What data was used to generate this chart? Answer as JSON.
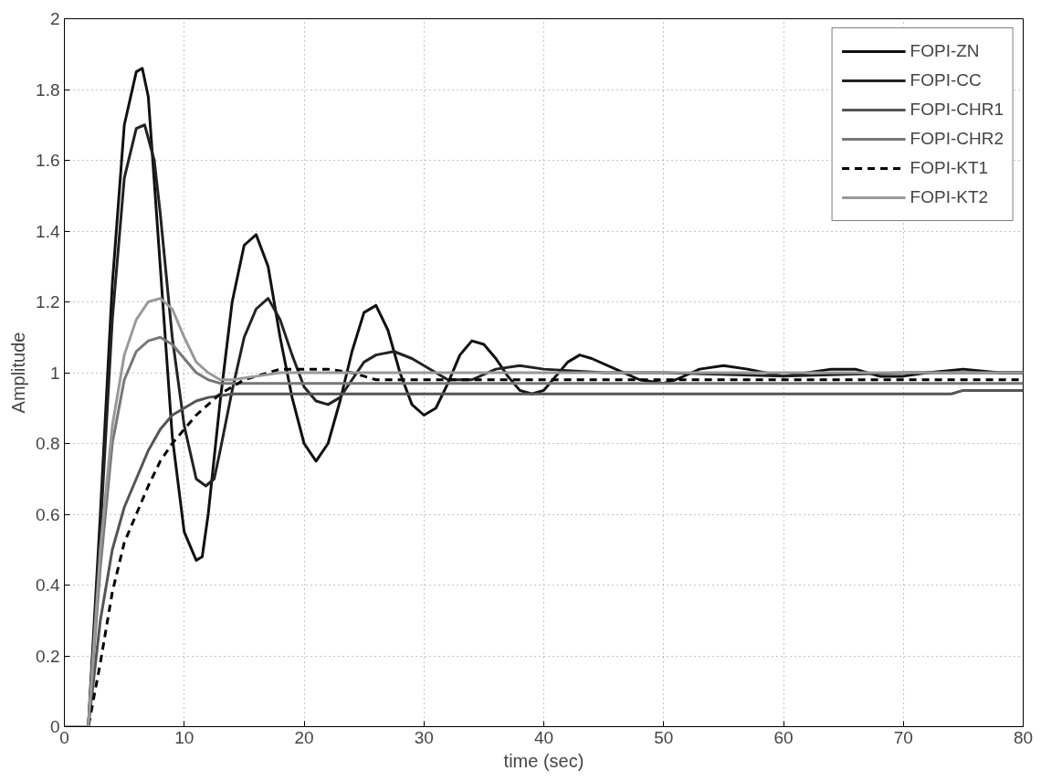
{
  "chart_data": {
    "type": "line",
    "xlabel": "time (sec)",
    "ylabel": "Amplitude",
    "xlim": [
      0,
      80
    ],
    "xticks": [
      0,
      10,
      20,
      30,
      40,
      50,
      60,
      70,
      80
    ],
    "ylim": [
      0,
      2
    ],
    "yticks": [
      0,
      0.2,
      0.4,
      0.6,
      0.8,
      1,
      1.2,
      1.4,
      1.6,
      1.8,
      2
    ],
    "grid": true,
    "legend": "top right",
    "series": [
      {
        "name": "FOPI-ZN",
        "color": "#111111",
        "x": [
          0,
          2,
          3,
          4,
          5,
          6,
          6.5,
          7,
          8,
          9,
          10,
          11,
          11.5,
          12,
          13,
          14,
          15,
          16,
          17,
          18,
          19,
          20,
          21,
          22,
          23,
          24,
          25,
          26,
          27,
          28,
          29,
          30,
          31,
          32,
          33,
          34,
          35,
          36,
          37,
          38,
          39,
          40,
          41,
          42,
          43,
          44,
          46,
          48,
          50,
          51,
          53,
          55,
          57,
          60,
          62,
          64,
          66,
          68,
          70,
          72,
          75,
          78,
          80
        ],
        "values": [
          0,
          0,
          0.6,
          1.25,
          1.7,
          1.85,
          1.86,
          1.78,
          1.3,
          0.82,
          0.55,
          0.47,
          0.48,
          0.6,
          0.92,
          1.2,
          1.36,
          1.39,
          1.3,
          1.1,
          0.93,
          0.8,
          0.75,
          0.8,
          0.92,
          1.06,
          1.17,
          1.19,
          1.12,
          1.0,
          0.91,
          0.88,
          0.9,
          0.97,
          1.05,
          1.09,
          1.08,
          1.04,
          0.99,
          0.95,
          0.94,
          0.95,
          0.99,
          1.03,
          1.05,
          1.04,
          1.01,
          0.98,
          0.97,
          0.98,
          1.01,
          1.02,
          1.01,
          0.99,
          1.0,
          1.01,
          1.01,
          0.99,
          0.99,
          1.0,
          1.01,
          1.0,
          1.0
        ]
      },
      {
        "name": "FOPI-CC",
        "color": "#222222",
        "x": [
          0,
          2,
          3,
          4,
          5,
          6,
          6.7,
          7.5,
          8,
          9,
          10,
          11,
          11.8,
          12.5,
          13,
          14,
          15,
          16,
          17,
          18,
          19,
          20,
          21,
          22,
          23,
          24,
          25,
          26,
          27.5,
          29,
          30,
          32,
          34,
          36,
          38,
          40,
          45,
          50,
          60,
          70,
          80
        ],
        "values": [
          0,
          0,
          0.55,
          1.15,
          1.55,
          1.69,
          1.7,
          1.6,
          1.45,
          1.1,
          0.85,
          0.7,
          0.68,
          0.7,
          0.78,
          0.95,
          1.1,
          1.18,
          1.21,
          1.15,
          1.05,
          0.96,
          0.92,
          0.91,
          0.93,
          0.98,
          1.03,
          1.05,
          1.06,
          1.04,
          1.02,
          0.98,
          0.98,
          1.01,
          1.02,
          1.01,
          1.0,
          1.0,
          0.99,
          1.0,
          1.0
        ]
      },
      {
        "name": "FOPI-CHR1",
        "color": "#555555",
        "x": [
          0,
          2,
          3,
          4,
          5,
          6,
          7,
          8,
          9,
          10,
          11,
          12,
          13,
          14,
          15,
          20,
          40,
          60,
          74,
          75,
          80
        ],
        "values": [
          0,
          0,
          0.3,
          0.5,
          0.62,
          0.7,
          0.78,
          0.84,
          0.88,
          0.9,
          0.92,
          0.93,
          0.935,
          0.94,
          0.94,
          0.94,
          0.94,
          0.94,
          0.94,
          0.95,
          0.95
        ]
      },
      {
        "name": "FOPI-CHR2",
        "color": "#777777",
        "x": [
          0,
          2,
          3,
          4,
          5,
          6,
          7,
          8,
          9,
          10,
          11,
          12,
          13,
          15,
          20,
          40,
          80
        ],
        "values": [
          0,
          0,
          0.45,
          0.8,
          0.98,
          1.06,
          1.09,
          1.1,
          1.08,
          1.04,
          1.0,
          0.98,
          0.97,
          0.97,
          0.97,
          0.97,
          0.97
        ]
      },
      {
        "name": "FOPI-KT1",
        "color": "#000000",
        "line_style": "dashed",
        "x": [
          0,
          2,
          3,
          4,
          5,
          6,
          7,
          8,
          9,
          10,
          11,
          12,
          13,
          14,
          15,
          16,
          17,
          18,
          20,
          22,
          24,
          25,
          26,
          30,
          40,
          60,
          80
        ],
        "values": [
          0,
          0,
          0.18,
          0.38,
          0.52,
          0.6,
          0.68,
          0.75,
          0.8,
          0.84,
          0.88,
          0.91,
          0.94,
          0.96,
          0.98,
          0.99,
          1.0,
          1.01,
          1.01,
          1.01,
          1.0,
          0.99,
          0.98,
          0.98,
          0.98,
          0.98,
          0.98
        ]
      },
      {
        "name": "FOPI-KT2",
        "color": "#999999",
        "x": [
          0,
          2,
          3,
          4,
          5,
          6,
          7,
          8,
          9,
          10,
          11,
          12,
          13,
          14,
          16,
          18,
          20,
          25,
          40,
          80
        ],
        "values": [
          0,
          0,
          0.5,
          0.85,
          1.05,
          1.15,
          1.2,
          1.21,
          1.18,
          1.1,
          1.03,
          1.0,
          0.98,
          0.98,
          0.99,
          1.0,
          1.0,
          1.0,
          1.0,
          1.0
        ]
      }
    ]
  }
}
